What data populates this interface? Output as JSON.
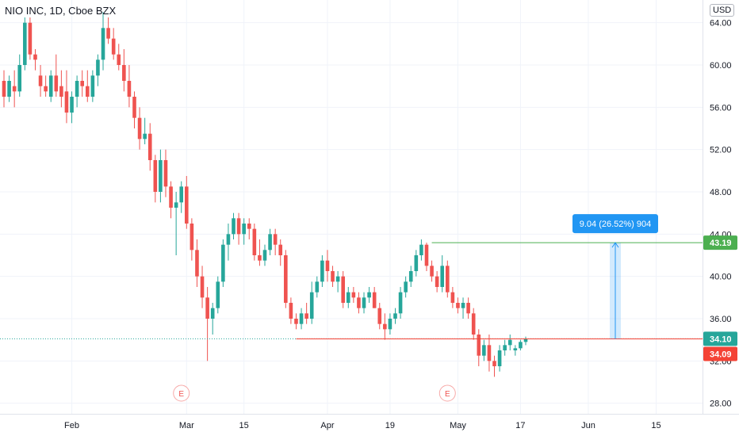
{
  "header": {
    "title": "NIO INC, 1D, Cboe BZX",
    "currency": "USD"
  },
  "colors": {
    "up": "#26a69a",
    "down": "#ef5350",
    "measure": "#2196f3",
    "resistance": "#4caf50",
    "support": "#f44336",
    "grid": "#f0f3fa",
    "axis_text": "#131722"
  },
  "chart_data": {
    "type": "candlestick",
    "title": "NIO INC, 1D, Cboe BZX",
    "ylim": [
      27,
      66
    ],
    "y_ticks": [
      28,
      32,
      36,
      40,
      44,
      48,
      52,
      56,
      60,
      64
    ],
    "y_tick_labels": [
      "28.00",
      "32.00",
      "36.00",
      "40.00",
      "44.00",
      "48.00",
      "52.00",
      "56.00",
      "60.00",
      "64.00"
    ],
    "x_ticks": [
      "Feb",
      "Mar",
      "15",
      "Apr",
      "19",
      "May",
      "17",
      "Jun",
      "15"
    ],
    "earnings_marker": "E",
    "price_labels": {
      "resistance": "43.19",
      "last": "34.10",
      "support": "34.09"
    },
    "measure_label": "9.04 (26.52%) 904",
    "levels": {
      "resistance": 43.19,
      "last": 34.1,
      "support": 34.09
    },
    "candles": [
      [
        58.5,
        59.5,
        56.0,
        57.0
      ],
      [
        57.0,
        59.0,
        56.5,
        58.5
      ],
      [
        58.0,
        59.5,
        56.0,
        57.5
      ],
      [
        57.5,
        61.0,
        57.0,
        60.0
      ],
      [
        60.0,
        64.5,
        59.5,
        64.0
      ],
      [
        64.0,
        64.5,
        60.5,
        61.0
      ],
      [
        61.0,
        61.5,
        59.5,
        60.5
      ],
      [
        59.0,
        60.0,
        57.0,
        58.0
      ],
      [
        58.0,
        59.0,
        57.0,
        57.5
      ],
      [
        57.0,
        59.5,
        56.5,
        59.0
      ],
      [
        59.0,
        61.0,
        57.0,
        57.5
      ],
      [
        58.0,
        59.5,
        56.0,
        57.0
      ],
      [
        57.5,
        59.5,
        54.5,
        55.5
      ],
      [
        55.5,
        57.5,
        54.5,
        57.0
      ],
      [
        57.0,
        59.0,
        56.0,
        58.5
      ],
      [
        58.5,
        59.5,
        57.0,
        58.0
      ],
      [
        58.0,
        59.5,
        56.5,
        57.0
      ],
      [
        57.0,
        59.5,
        56.5,
        59.0
      ],
      [
        59.0,
        61.0,
        58.0,
        60.5
      ],
      [
        60.5,
        65.0,
        59.5,
        63.5
      ],
      [
        63.5,
        64.5,
        62.0,
        62.5
      ],
      [
        62.5,
        63.5,
        60.5,
        61.0
      ],
      [
        61.0,
        62.0,
        59.5,
        60.0
      ],
      [
        60.0,
        61.5,
        57.5,
        58.5
      ],
      [
        58.5,
        60.0,
        56.0,
        57.0
      ],
      [
        57.0,
        57.5,
        54.0,
        55.0
      ],
      [
        55.0,
        56.0,
        52.0,
        53.0
      ],
      [
        53.0,
        55.0,
        52.5,
        53.5
      ],
      [
        53.5,
        54.5,
        50.0,
        51.0
      ],
      [
        51.0,
        51.5,
        47.0,
        48.0
      ],
      [
        48.0,
        52.0,
        47.0,
        51.0
      ],
      [
        51.0,
        52.0,
        47.5,
        48.5
      ],
      [
        48.5,
        49.0,
        45.5,
        46.5
      ],
      [
        46.5,
        48.0,
        42.0,
        47.0
      ],
      [
        47.0,
        49.0,
        46.0,
        48.5
      ],
      [
        48.5,
        49.5,
        44.5,
        45.0
      ],
      [
        45.0,
        45.5,
        41.5,
        42.5
      ],
      [
        42.5,
        43.5,
        39.0,
        40.0
      ],
      [
        40.0,
        41.0,
        37.0,
        38.0
      ],
      [
        38.0,
        39.0,
        32.0,
        36.0
      ],
      [
        36.0,
        37.5,
        34.5,
        37.0
      ],
      [
        37.0,
        40.0,
        36.5,
        39.5
      ],
      [
        39.5,
        43.5,
        39.0,
        43.0
      ],
      [
        43.0,
        45.0,
        41.5,
        44.0
      ],
      [
        44.0,
        46.0,
        43.5,
        45.5
      ],
      [
        45.5,
        46.0,
        43.0,
        44.0
      ],
      [
        44.0,
        45.5,
        43.0,
        45.0
      ],
      [
        45.0,
        45.5,
        43.5,
        44.5
      ],
      [
        44.5,
        45.0,
        41.5,
        42.0
      ],
      [
        42.0,
        43.5,
        41.0,
        41.5
      ],
      [
        41.5,
        43.0,
        41.0,
        42.5
      ],
      [
        42.5,
        44.5,
        42.0,
        44.0
      ],
      [
        44.0,
        44.5,
        42.0,
        43.0
      ],
      [
        43.0,
        43.5,
        41.0,
        42.0
      ],
      [
        42.0,
        42.5,
        37.0,
        37.5
      ],
      [
        37.5,
        38.0,
        35.5,
        36.0
      ],
      [
        36.0,
        36.5,
        35.0,
        35.5
      ],
      [
        35.5,
        37.0,
        35.0,
        36.5
      ],
      [
        36.5,
        37.5,
        35.5,
        36.0
      ],
      [
        36.0,
        39.5,
        35.5,
        38.5
      ],
      [
        38.5,
        40.0,
        38.0,
        39.5
      ],
      [
        39.5,
        42.0,
        39.0,
        41.5
      ],
      [
        41.5,
        42.5,
        39.5,
        40.5
      ],
      [
        40.5,
        41.0,
        39.0,
        39.5
      ],
      [
        39.5,
        40.5,
        38.5,
        40.0
      ],
      [
        40.0,
        40.5,
        37.0,
        37.5
      ],
      [
        37.5,
        39.0,
        37.0,
        38.5
      ],
      [
        38.5,
        39.0,
        37.5,
        38.0
      ],
      [
        38.0,
        38.5,
        36.5,
        37.0
      ],
      [
        37.0,
        38.5,
        36.5,
        38.0
      ],
      [
        38.0,
        39.0,
        37.5,
        38.5
      ],
      [
        38.5,
        39.0,
        37.0,
        37.0
      ],
      [
        37.0,
        37.5,
        35.0,
        35.5
      ],
      [
        35.5,
        36.5,
        34.0,
        35.0
      ],
      [
        35.0,
        36.5,
        34.5,
        36.0
      ],
      [
        36.0,
        37.0,
        35.5,
        36.5
      ],
      [
        36.5,
        39.0,
        36.0,
        38.5
      ],
      [
        38.5,
        40.0,
        38.0,
        39.5
      ],
      [
        39.5,
        41.0,
        39.0,
        40.5
      ],
      [
        40.5,
        42.5,
        40.0,
        42.0
      ],
      [
        42.0,
        43.5,
        41.5,
        43.0
      ],
      [
        43.0,
        43.19,
        40.5,
        41.0
      ],
      [
        41.0,
        41.5,
        39.5,
        40.0
      ],
      [
        40.0,
        40.5,
        38.5,
        39.0
      ],
      [
        39.0,
        42.0,
        38.5,
        41.0
      ],
      [
        41.0,
        41.5,
        38.0,
        38.5
      ],
      [
        38.5,
        39.0,
        37.0,
        37.5
      ],
      [
        37.5,
        38.0,
        36.5,
        37.0
      ],
      [
        37.0,
        38.0,
        36.0,
        37.5
      ],
      [
        37.5,
        38.0,
        36.0,
        36.5
      ],
      [
        36.5,
        37.0,
        34.0,
        34.5
      ],
      [
        34.5,
        35.0,
        31.5,
        32.5
      ],
      [
        32.5,
        34.0,
        32.0,
        33.5
      ],
      [
        33.5,
        34.5,
        31.0,
        32.0
      ],
      [
        32.0,
        32.5,
        30.5,
        31.5
      ],
      [
        31.5,
        33.5,
        31.0,
        33.0
      ],
      [
        33.0,
        34.0,
        32.5,
        33.5
      ],
      [
        33.5,
        34.5,
        33.0,
        34.0
      ],
      [
        33.0,
        33.5,
        32.5,
        33.2
      ],
      [
        33.2,
        34.0,
        33.0,
        33.8
      ],
      [
        33.8,
        34.3,
        33.5,
        34.1
      ]
    ]
  }
}
